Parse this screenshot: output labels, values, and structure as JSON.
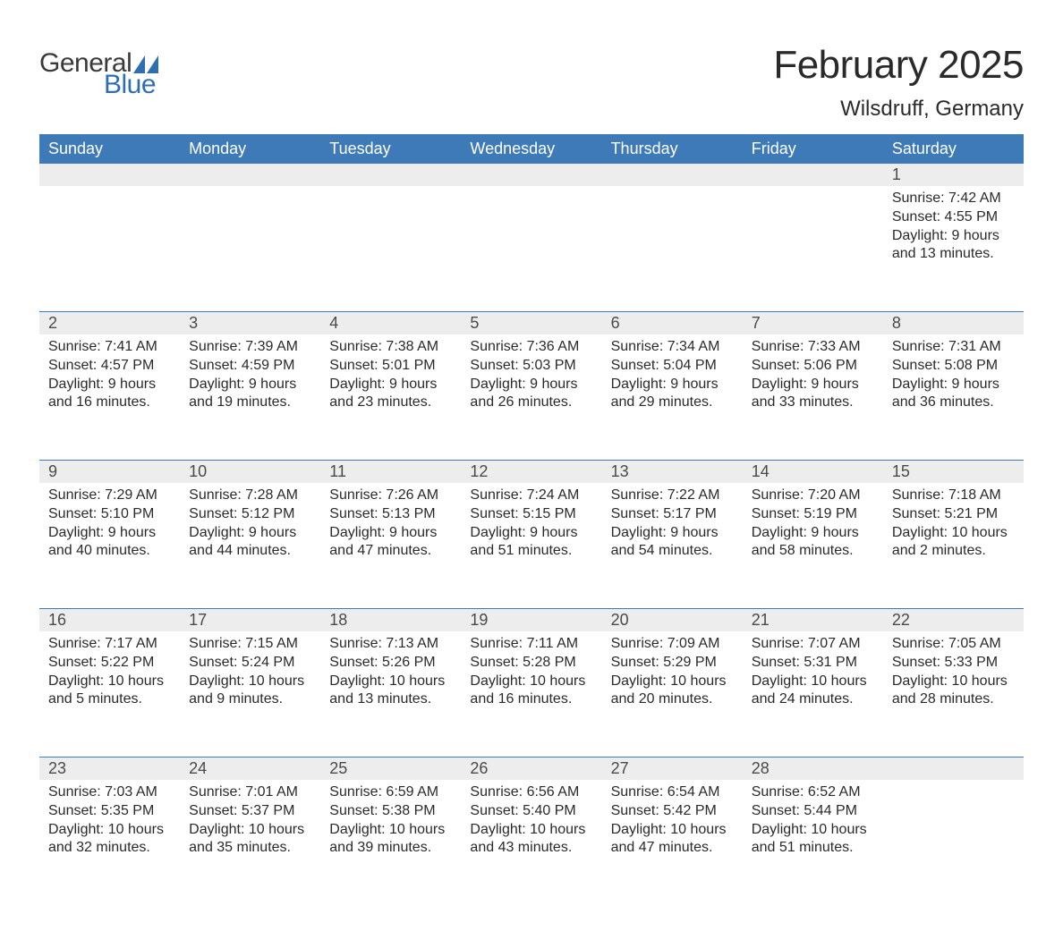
{
  "brand": {
    "general": "General",
    "blue": "Blue"
  },
  "title": "February 2025",
  "location": "Wilsdruff, Germany",
  "colors": {
    "header_bg": "#3f7ab8",
    "header_text": "#ffffff",
    "daynum_bg": "#ededed",
    "week_border": "#3f7ab8",
    "text": "#2a2a2a",
    "logo_gray": "#3a3a3a",
    "logo_blue": "#2f6fb0",
    "triangle": "#2f6fb0"
  },
  "layout": {
    "columns": [
      "Sunday",
      "Monday",
      "Tuesday",
      "Wednesday",
      "Thursday",
      "Friday",
      "Saturday"
    ],
    "title_fontsize": 44,
    "location_fontsize": 24,
    "weekday_fontsize": 18,
    "body_fontsize": 16
  },
  "weeks": [
    [
      null,
      null,
      null,
      null,
      null,
      null,
      {
        "n": "1",
        "sr": "Sunrise: 7:42 AM",
        "ss": "Sunset: 4:55 PM",
        "d1": "Daylight: 9 hours",
        "d2": "and 13 minutes."
      }
    ],
    [
      {
        "n": "2",
        "sr": "Sunrise: 7:41 AM",
        "ss": "Sunset: 4:57 PM",
        "d1": "Daylight: 9 hours",
        "d2": "and 16 minutes."
      },
      {
        "n": "3",
        "sr": "Sunrise: 7:39 AM",
        "ss": "Sunset: 4:59 PM",
        "d1": "Daylight: 9 hours",
        "d2": "and 19 minutes."
      },
      {
        "n": "4",
        "sr": "Sunrise: 7:38 AM",
        "ss": "Sunset: 5:01 PM",
        "d1": "Daylight: 9 hours",
        "d2": "and 23 minutes."
      },
      {
        "n": "5",
        "sr": "Sunrise: 7:36 AM",
        "ss": "Sunset: 5:03 PM",
        "d1": "Daylight: 9 hours",
        "d2": "and 26 minutes."
      },
      {
        "n": "6",
        "sr": "Sunrise: 7:34 AM",
        "ss": "Sunset: 5:04 PM",
        "d1": "Daylight: 9 hours",
        "d2": "and 29 minutes."
      },
      {
        "n": "7",
        "sr": "Sunrise: 7:33 AM",
        "ss": "Sunset: 5:06 PM",
        "d1": "Daylight: 9 hours",
        "d2": "and 33 minutes."
      },
      {
        "n": "8",
        "sr": "Sunrise: 7:31 AM",
        "ss": "Sunset: 5:08 PM",
        "d1": "Daylight: 9 hours",
        "d2": "and 36 minutes."
      }
    ],
    [
      {
        "n": "9",
        "sr": "Sunrise: 7:29 AM",
        "ss": "Sunset: 5:10 PM",
        "d1": "Daylight: 9 hours",
        "d2": "and 40 minutes."
      },
      {
        "n": "10",
        "sr": "Sunrise: 7:28 AM",
        "ss": "Sunset: 5:12 PM",
        "d1": "Daylight: 9 hours",
        "d2": "and 44 minutes."
      },
      {
        "n": "11",
        "sr": "Sunrise: 7:26 AM",
        "ss": "Sunset: 5:13 PM",
        "d1": "Daylight: 9 hours",
        "d2": "and 47 minutes."
      },
      {
        "n": "12",
        "sr": "Sunrise: 7:24 AM",
        "ss": "Sunset: 5:15 PM",
        "d1": "Daylight: 9 hours",
        "d2": "and 51 minutes."
      },
      {
        "n": "13",
        "sr": "Sunrise: 7:22 AM",
        "ss": "Sunset: 5:17 PM",
        "d1": "Daylight: 9 hours",
        "d2": "and 54 minutes."
      },
      {
        "n": "14",
        "sr": "Sunrise: 7:20 AM",
        "ss": "Sunset: 5:19 PM",
        "d1": "Daylight: 9 hours",
        "d2": "and 58 minutes."
      },
      {
        "n": "15",
        "sr": "Sunrise: 7:18 AM",
        "ss": "Sunset: 5:21 PM",
        "d1": "Daylight: 10 hours",
        "d2": "and 2 minutes."
      }
    ],
    [
      {
        "n": "16",
        "sr": "Sunrise: 7:17 AM",
        "ss": "Sunset: 5:22 PM",
        "d1": "Daylight: 10 hours",
        "d2": "and 5 minutes."
      },
      {
        "n": "17",
        "sr": "Sunrise: 7:15 AM",
        "ss": "Sunset: 5:24 PM",
        "d1": "Daylight: 10 hours",
        "d2": "and 9 minutes."
      },
      {
        "n": "18",
        "sr": "Sunrise: 7:13 AM",
        "ss": "Sunset: 5:26 PM",
        "d1": "Daylight: 10 hours",
        "d2": "and 13 minutes."
      },
      {
        "n": "19",
        "sr": "Sunrise: 7:11 AM",
        "ss": "Sunset: 5:28 PM",
        "d1": "Daylight: 10 hours",
        "d2": "and 16 minutes."
      },
      {
        "n": "20",
        "sr": "Sunrise: 7:09 AM",
        "ss": "Sunset: 5:29 PM",
        "d1": "Daylight: 10 hours",
        "d2": "and 20 minutes."
      },
      {
        "n": "21",
        "sr": "Sunrise: 7:07 AM",
        "ss": "Sunset: 5:31 PM",
        "d1": "Daylight: 10 hours",
        "d2": "and 24 minutes."
      },
      {
        "n": "22",
        "sr": "Sunrise: 7:05 AM",
        "ss": "Sunset: 5:33 PM",
        "d1": "Daylight: 10 hours",
        "d2": "and 28 minutes."
      }
    ],
    [
      {
        "n": "23",
        "sr": "Sunrise: 7:03 AM",
        "ss": "Sunset: 5:35 PM",
        "d1": "Daylight: 10 hours",
        "d2": "and 32 minutes."
      },
      {
        "n": "24",
        "sr": "Sunrise: 7:01 AM",
        "ss": "Sunset: 5:37 PM",
        "d1": "Daylight: 10 hours",
        "d2": "and 35 minutes."
      },
      {
        "n": "25",
        "sr": "Sunrise: 6:59 AM",
        "ss": "Sunset: 5:38 PM",
        "d1": "Daylight: 10 hours",
        "d2": "and 39 minutes."
      },
      {
        "n": "26",
        "sr": "Sunrise: 6:56 AM",
        "ss": "Sunset: 5:40 PM",
        "d1": "Daylight: 10 hours",
        "d2": "and 43 minutes."
      },
      {
        "n": "27",
        "sr": "Sunrise: 6:54 AM",
        "ss": "Sunset: 5:42 PM",
        "d1": "Daylight: 10 hours",
        "d2": "and 47 minutes."
      },
      {
        "n": "28",
        "sr": "Sunrise: 6:52 AM",
        "ss": "Sunset: 5:44 PM",
        "d1": "Daylight: 10 hours",
        "d2": "and 51 minutes."
      },
      null
    ]
  ]
}
